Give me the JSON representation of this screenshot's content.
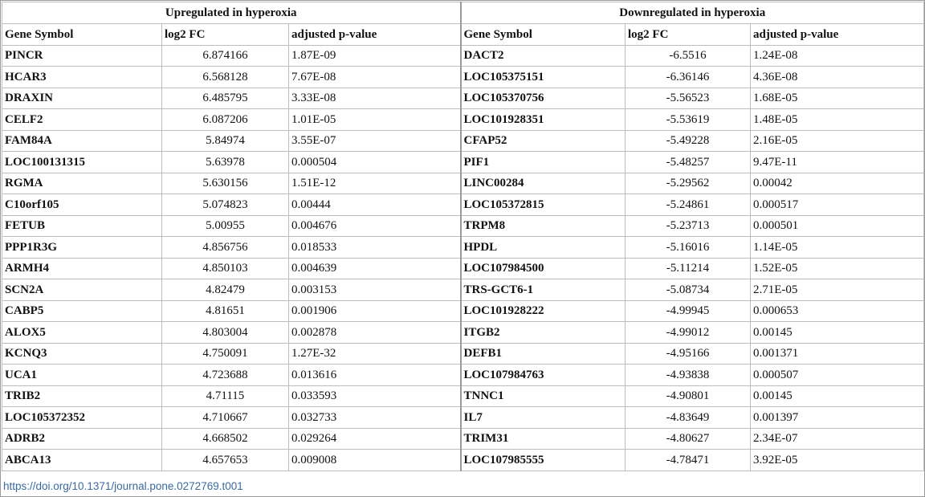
{
  "groups": {
    "up": "Upregulated in hyperoxia",
    "down": "Downregulated in hyperoxia"
  },
  "columns": [
    "Gene Symbol",
    "log2 FC",
    "adjusted p-value"
  ],
  "up_rows": [
    [
      "PINCR",
      "6.874166",
      "1.87E-09"
    ],
    [
      "HCAR3",
      "6.568128",
      "7.67E-08"
    ],
    [
      "DRAXIN",
      "6.485795",
      "3.33E-08"
    ],
    [
      "CELF2",
      "6.087206",
      "1.01E-05"
    ],
    [
      "FAM84A",
      "5.84974",
      "3.55E-07"
    ],
    [
      "LOC100131315",
      "5.63978",
      "0.000504"
    ],
    [
      "RGMA",
      "5.630156",
      "1.51E-12"
    ],
    [
      "C10orf105",
      "5.074823",
      "0.00444"
    ],
    [
      "FETUB",
      "5.00955",
      "0.004676"
    ],
    [
      "PPP1R3G",
      "4.856756",
      "0.018533"
    ],
    [
      "ARMH4",
      "4.850103",
      "0.004639"
    ],
    [
      "SCN2A",
      "4.82479",
      "0.003153"
    ],
    [
      "CABP5",
      "4.81651",
      "0.001906"
    ],
    [
      "ALOX5",
      "4.803004",
      "0.002878"
    ],
    [
      "KCNQ3",
      "4.750091",
      "1.27E-32"
    ],
    [
      "UCA1",
      "4.723688",
      "0.013616"
    ],
    [
      "TRIB2",
      "4.71115",
      "0.033593"
    ],
    [
      "LOC105372352",
      "4.710667",
      "0.032733"
    ],
    [
      "ADRB2",
      "4.668502",
      "0.029264"
    ],
    [
      "ABCA13",
      "4.657653",
      "0.009008"
    ]
  ],
  "down_rows": [
    [
      "DACT2",
      "-6.5516",
      "1.24E-08"
    ],
    [
      "LOC105375151",
      "-6.36146",
      "4.36E-08"
    ],
    [
      "LOC105370756",
      "-5.56523",
      "1.68E-05"
    ],
    [
      "LOC101928351",
      "-5.53619",
      "1.48E-05"
    ],
    [
      "CFAP52",
      "-5.49228",
      "2.16E-05"
    ],
    [
      "PIF1",
      "-5.48257",
      "9.47E-11"
    ],
    [
      "LINC00284",
      "-5.29562",
      "0.00042"
    ],
    [
      "LOC105372815",
      "-5.24861",
      "0.000517"
    ],
    [
      "TRPM8",
      "-5.23713",
      "0.000501"
    ],
    [
      "HPDL",
      "-5.16016",
      "1.14E-05"
    ],
    [
      "LOC107984500",
      "-5.11214",
      "1.52E-05"
    ],
    [
      "TRS-GCT6-1",
      "-5.08734",
      "2.71E-05"
    ],
    [
      "LOC101928222",
      "-4.99945",
      "0.000653"
    ],
    [
      "ITGB2",
      "-4.99012",
      "0.00145"
    ],
    [
      "DEFB1",
      "-4.95166",
      "0.001371"
    ],
    [
      "LOC107984763",
      "-4.93838",
      "0.000507"
    ],
    [
      "TNNC1",
      "-4.90801",
      "0.00145"
    ],
    [
      "IL7",
      "-4.83649",
      "0.001397"
    ],
    [
      "TRIM31",
      "-4.80627",
      "2.34E-07"
    ],
    [
      "LOC107985555",
      "-4.78471",
      "3.92E-05"
    ]
  ],
  "doi": "https://doi.org/10.1371/journal.pone.0272769.t001"
}
